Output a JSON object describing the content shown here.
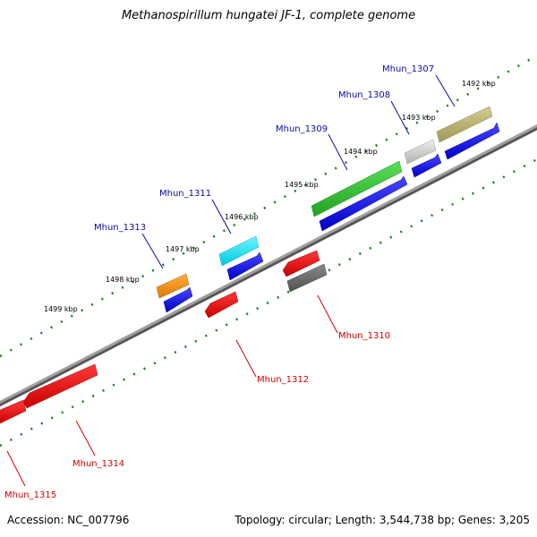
{
  "title": "Methanospirillum hungatei JF-1, complete genome",
  "footer": {
    "accession": "Accession: NC_007796",
    "topology": "Topology: circular; Length: 3,544,738 bp; Genes: 3,205"
  },
  "scale_labels": [
    "1492 kbp",
    "1493 kbp",
    "1494 kbp",
    "1495 kbp",
    "1496 kbp",
    "1497 kbp",
    "1498 kbp",
    "1499 kbp"
  ],
  "genes_forward": [
    "Mhun_1307",
    "Mhun_1308",
    "Mhun_1309",
    "Mhun_1311",
    "Mhun_1313"
  ],
  "genes_reverse": [
    "Mhun_1310",
    "Mhun_1312",
    "Mhun_1314",
    "Mhun_1315"
  ],
  "colors": {
    "forward_label": "#0a0aa8",
    "reverse_label": "#d40000",
    "cds_blue": "#1010e0",
    "cds_red": "#e01010",
    "backbone": "#808080",
    "tick": "#1a7a1a",
    "green": "#2ec02e",
    "olive": "#b8b070",
    "grey": "#c8c8c8",
    "cyan": "#10e0f0",
    "orange": "#f08c10",
    "darkgrey": "#6a6a6a"
  }
}
